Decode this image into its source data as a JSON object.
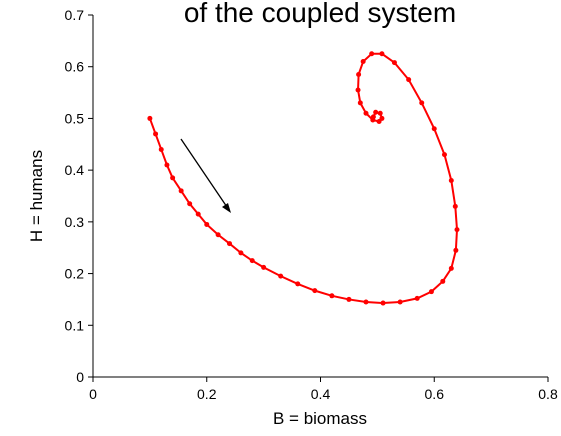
{
  "chart_data": {
    "type": "line",
    "title": "of the coupled system",
    "xlabel": "B = biomass",
    "ylabel": "H = humans",
    "xlim": [
      0,
      0.8
    ],
    "xticks": [
      0,
      0.2,
      0.4,
      0.6,
      0.8
    ],
    "ylim": [
      0,
      0.7
    ],
    "yticks": [
      0,
      0.1,
      0.2,
      0.3,
      0.4,
      0.5,
      0.6,
      0.7
    ],
    "markers": true,
    "series": [
      {
        "color": "#ff0000",
        "x": [
          0.1,
          0.11,
          0.12,
          0.13,
          0.14,
          0.155,
          0.17,
          0.185,
          0.2,
          0.22,
          0.24,
          0.26,
          0.28,
          0.3,
          0.33,
          0.36,
          0.39,
          0.42,
          0.45,
          0.48,
          0.51,
          0.54,
          0.57,
          0.595,
          0.615,
          0.63,
          0.638,
          0.64,
          0.637,
          0.63,
          0.618,
          0.6,
          0.578,
          0.555,
          0.53,
          0.508,
          0.49,
          0.475,
          0.467,
          0.466,
          0.47,
          0.48,
          0.492,
          0.503,
          0.508,
          0.505,
          0.497,
          0.493
        ],
        "values": [
          0.5,
          0.47,
          0.44,
          0.41,
          0.385,
          0.36,
          0.335,
          0.315,
          0.295,
          0.275,
          0.258,
          0.24,
          0.225,
          0.212,
          0.195,
          0.18,
          0.167,
          0.157,
          0.15,
          0.145,
          0.143,
          0.145,
          0.152,
          0.165,
          0.185,
          0.21,
          0.245,
          0.285,
          0.33,
          0.38,
          0.43,
          0.48,
          0.53,
          0.575,
          0.608,
          0.625,
          0.625,
          0.61,
          0.585,
          0.555,
          0.53,
          0.51,
          0.497,
          0.494,
          0.5,
          0.51,
          0.512,
          0.503
        ]
      }
    ]
  }
}
